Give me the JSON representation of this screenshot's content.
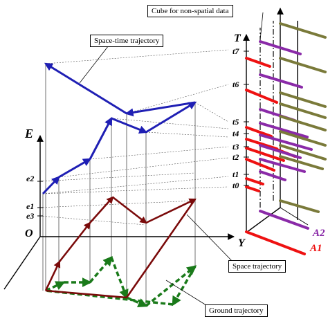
{
  "callouts": {
    "cube": "Cube for non-spatial data",
    "space_time": "Space-time trajectory",
    "space": "Space trajectory",
    "ground": "Ground trajectory"
  },
  "axes": {
    "E": "E",
    "Y": "Y",
    "O": "O",
    "T": "T"
  },
  "e_ticks": {
    "e2": "e2",
    "e1": "e1",
    "e3": "e3"
  },
  "t_ticks": {
    "t7": "t7",
    "t6": "t6",
    "t5": "t5",
    "t4": "t4",
    "t3": "t3",
    "t2": "t2",
    "t1": "t1",
    "t0": "t0"
  },
  "attributes": {
    "A1": "A1",
    "A2": "A2"
  },
  "colors": {
    "space_time": "#1f1fb4",
    "space": "#7a0a0a",
    "ground": "#1a7a1a",
    "attr_red": "#ee1111",
    "attr_purple": "#8a2aa8",
    "attr_olive": "#7a7a3a",
    "axis": "#000000",
    "guide": "#666666"
  }
}
